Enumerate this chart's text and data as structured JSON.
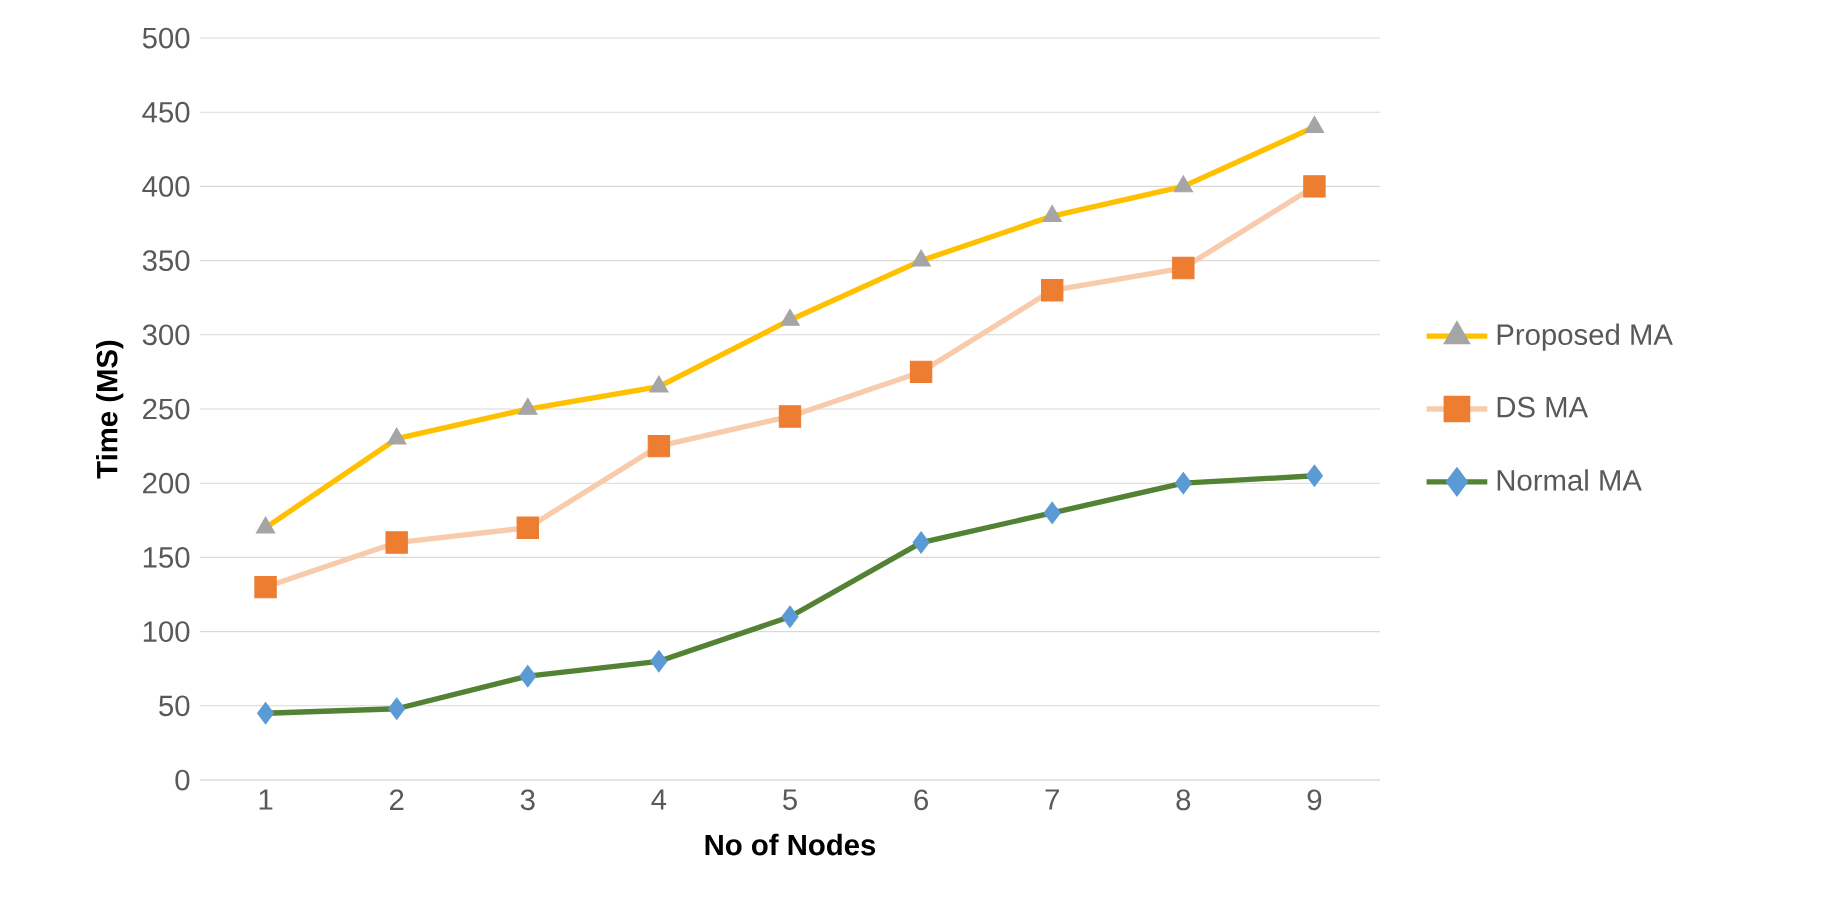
{
  "chart_data": {
    "type": "line",
    "xlabel": "No of Nodes",
    "ylabel": "Time (MS)",
    "categories": [
      "1",
      "2",
      "3",
      "4",
      "5",
      "6",
      "7",
      "8",
      "9"
    ],
    "ylim": [
      0,
      500
    ],
    "yticks": [
      0,
      50,
      100,
      150,
      200,
      250,
      300,
      350,
      400,
      450,
      500
    ],
    "grid": "y",
    "legend": "right",
    "line_style": "solid",
    "series": [
      {
        "name": "Proposed MA",
        "color": "#ffc000",
        "marker": "triangle",
        "colors": [
          "#a5a5a5",
          "#a5a5a5",
          "#a5a5a5",
          "#a5a5a5",
          "#a5a5a5",
          "#a5a5a5",
          "#a5a5a5",
          "#a5a5a5",
          "#a5a5a5"
        ],
        "values": [
          170,
          230,
          250,
          265,
          310,
          350,
          380,
          400,
          440
        ]
      },
      {
        "name": "DS MA",
        "color": "#f8cbad",
        "marker": "square",
        "colors": [
          "#ed7d31",
          "#ed7d31",
          "#ed7d31",
          "#ed7d31",
          "#ed7d31",
          "#ed7d31",
          "#ed7d31",
          "#ed7d31",
          "#ed7d31"
        ],
        "values": [
          130,
          160,
          170,
          225,
          245,
          275,
          330,
          345,
          400
        ]
      },
      {
        "name": "Normal MA",
        "color": "#548235",
        "marker": "diamond",
        "colors": [
          "#5b9bd5",
          "#5b9bd5",
          "#5b9bd5",
          "#5b9bd5",
          "#5b9bd5",
          "#5b9bd5",
          "#5b9bd5",
          "#5b9bd5",
          "#5b9bd5"
        ],
        "values": [
          45,
          48,
          70,
          80,
          110,
          160,
          180,
          200,
          205
        ]
      }
    ]
  }
}
